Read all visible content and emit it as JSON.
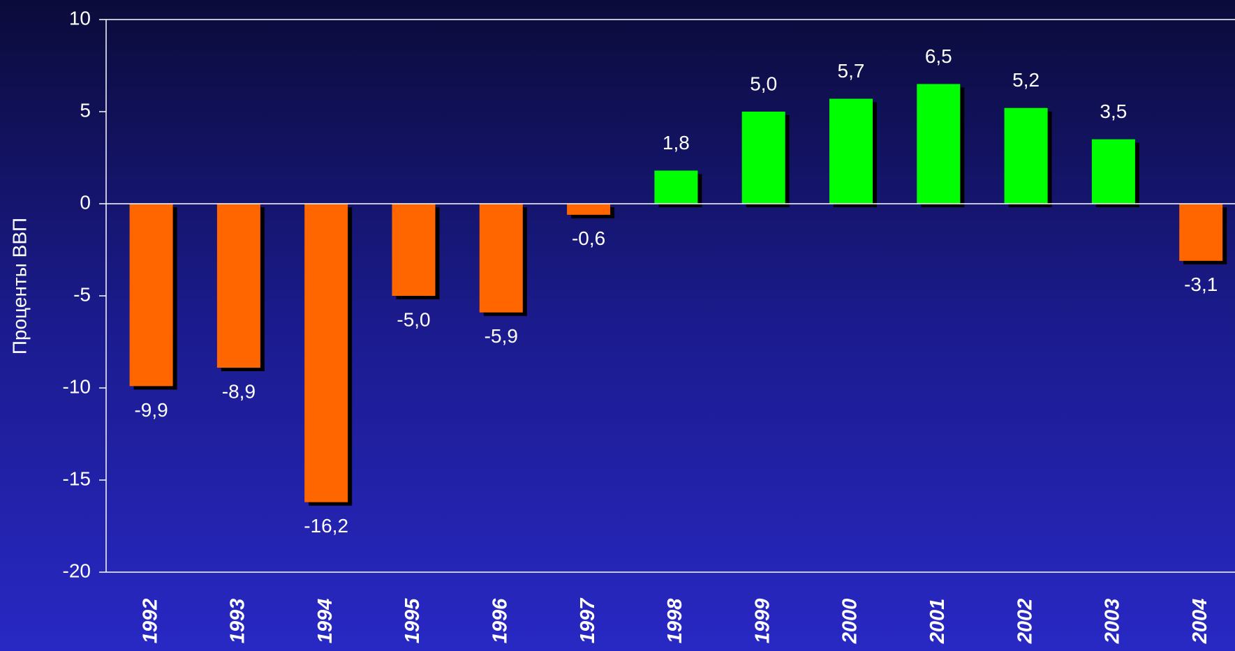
{
  "chart_data": {
    "type": "bar",
    "y_axis_label": "Проценты ВВП",
    "categories": [
      "1992",
      "1993",
      "1994",
      "1995",
      "1996",
      "1997",
      "1998",
      "1999",
      "2000",
      "2001",
      "2002",
      "2003",
      "2004"
    ],
    "values": [
      -9.9,
      -8.9,
      -16.2,
      -5.0,
      -5.9,
      -0.6,
      1.8,
      5.0,
      5.7,
      6.5,
      5.2,
      3.5,
      -3.1
    ],
    "value_labels": [
      "-9,9",
      "-8,9",
      "-16,2",
      "-5,0",
      "-5,9",
      "-0,6",
      "1,8",
      "5,0",
      "5,7",
      "6,5",
      "5,2",
      "3,5",
      "-3,1"
    ],
    "colors": [
      "#ff6600",
      "#ff6600",
      "#ff6600",
      "#ff6600",
      "#ff6600",
      "#ff6600",
      "#00ff00",
      "#00ff00",
      "#00ff00",
      "#00ff00",
      "#00ff00",
      "#00ff00",
      "#ff6600"
    ],
    "ylim": [
      -20,
      10
    ],
    "yticks": [
      10,
      5,
      0,
      -5,
      -10,
      -15,
      -20
    ]
  }
}
